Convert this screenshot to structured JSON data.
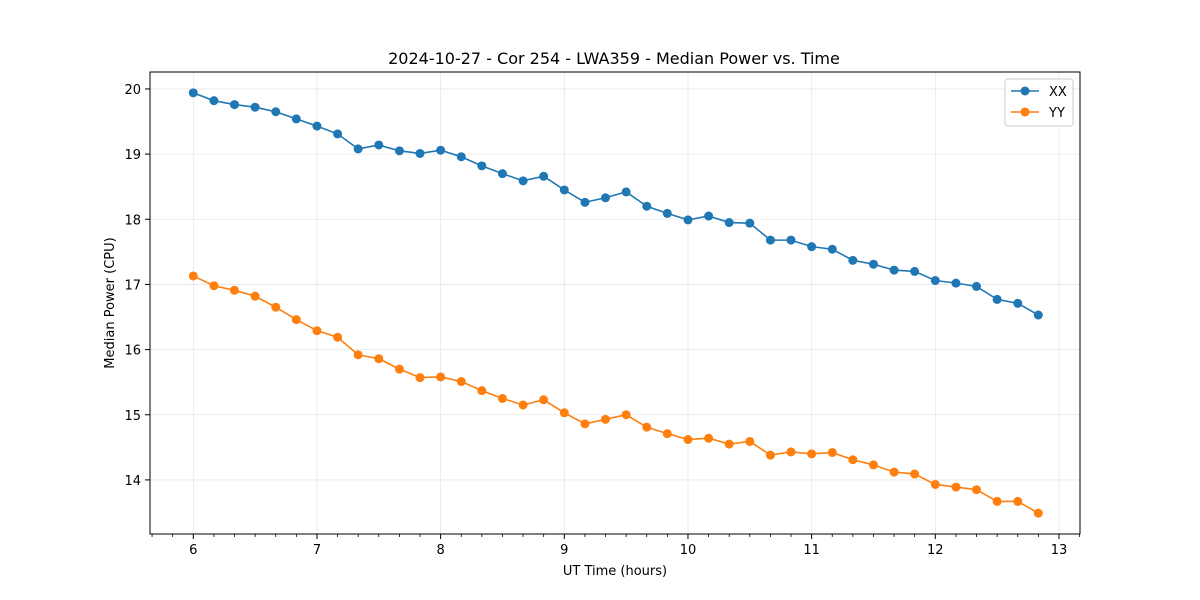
{
  "chart_data": {
    "type": "line",
    "title": "2024-10-27 - Cor 254 - LWA359 - Median Power vs. Time",
    "xlabel": "UT Time (hours)",
    "ylabel": "Median Power (CPU)",
    "xlim": [
      5.65,
      13.17
    ],
    "ylim": [
      13.17,
      20.26
    ],
    "xticks": [
      6,
      7,
      8,
      9,
      10,
      11,
      12,
      13
    ],
    "yticks": [
      14,
      15,
      16,
      17,
      18,
      19,
      20
    ],
    "grid": true,
    "legend_position": "top-right",
    "x": [
      6.0,
      6.167,
      6.333,
      6.5,
      6.667,
      6.833,
      7.0,
      7.167,
      7.333,
      7.5,
      7.667,
      7.833,
      8.0,
      8.167,
      8.333,
      8.5,
      8.667,
      8.833,
      9.0,
      9.167,
      9.333,
      9.5,
      9.667,
      9.833,
      10.0,
      10.167,
      10.333,
      10.5,
      10.667,
      10.833,
      11.0,
      11.167,
      11.333,
      11.5,
      11.667,
      11.833,
      12.0,
      12.167,
      12.333,
      12.5,
      12.667,
      12.833
    ],
    "series": [
      {
        "name": "XX",
        "color": "#1f77b4",
        "values": [
          19.94,
          19.82,
          19.76,
          19.72,
          19.65,
          19.54,
          19.43,
          19.31,
          19.08,
          19.14,
          19.05,
          19.01,
          19.06,
          18.96,
          18.82,
          18.7,
          18.59,
          18.66,
          18.45,
          18.26,
          18.33,
          18.42,
          18.2,
          18.09,
          17.99,
          18.05,
          17.95,
          17.94,
          17.68,
          17.68,
          17.58,
          17.54,
          17.37,
          17.31,
          17.22,
          17.2,
          17.06,
          17.02,
          16.97,
          16.77,
          16.71,
          16.53
        ]
      },
      {
        "name": "YY",
        "color": "#ff7f0e",
        "values": [
          17.13,
          16.98,
          16.91,
          16.82,
          16.65,
          16.46,
          16.29,
          16.19,
          15.92,
          15.86,
          15.7,
          15.57,
          15.58,
          15.51,
          15.37,
          15.25,
          15.15,
          15.23,
          15.03,
          14.86,
          14.93,
          15.0,
          14.81,
          14.71,
          14.62,
          14.64,
          14.55,
          14.59,
          14.38,
          14.43,
          14.4,
          14.42,
          14.31,
          14.23,
          14.12,
          14.09,
          13.93,
          13.89,
          13.85,
          13.67,
          13.67,
          13.49
        ]
      }
    ]
  }
}
